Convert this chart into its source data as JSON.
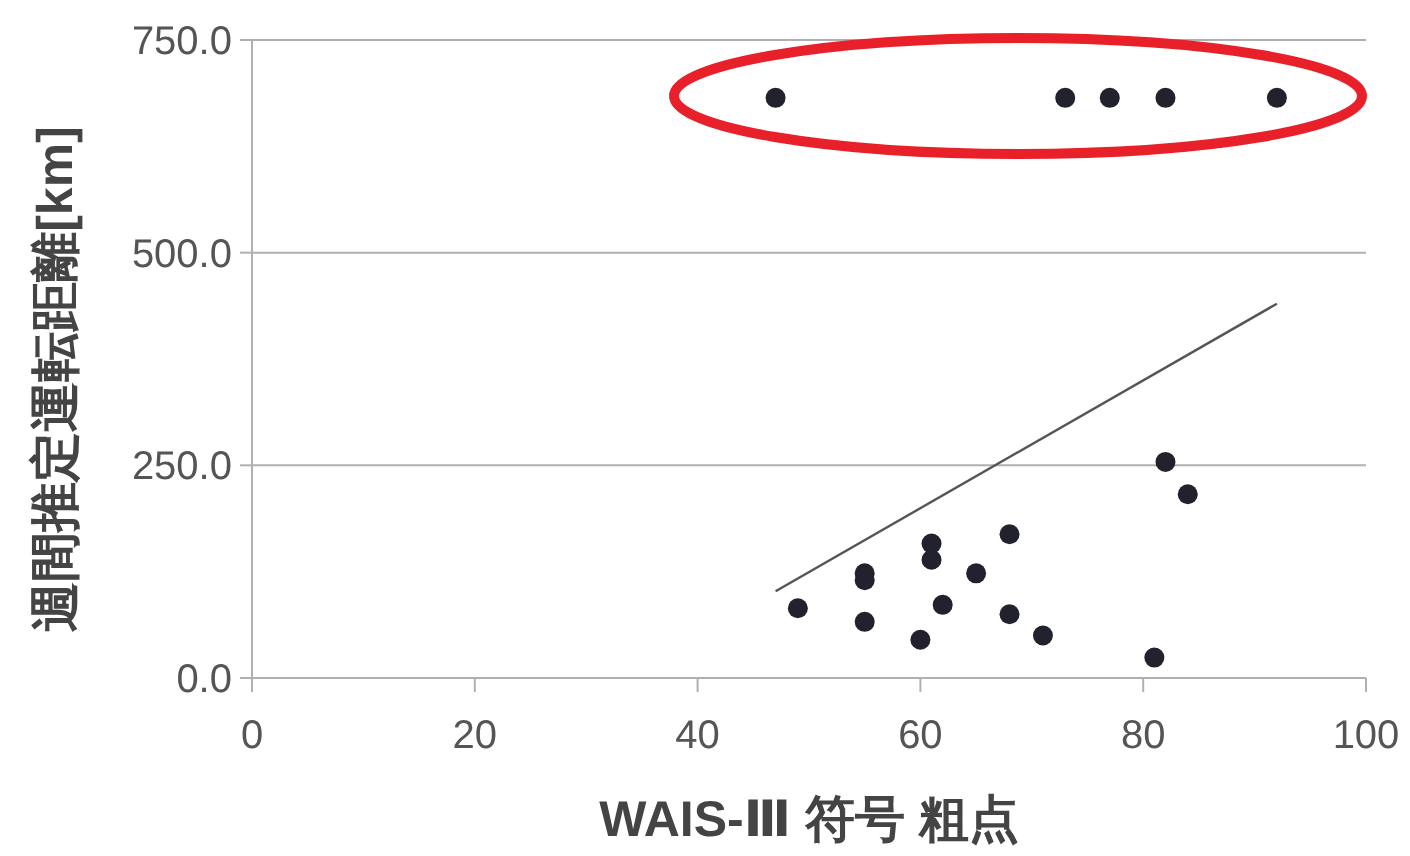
{
  "chart_data": {
    "type": "scatter",
    "xlabel": "WAIS-Ⅲ 符号 粗点",
    "ylabel": "週間推定運転距離[km]",
    "xlim": [
      0,
      100
    ],
    "xticks": [
      0,
      20,
      40,
      60,
      80,
      100
    ],
    "ylim": [
      0,
      750
    ],
    "yticks": [
      {
        "value": 0,
        "label": "0.0"
      },
      {
        "value": 250,
        "label": "250.0"
      },
      {
        "value": 500,
        "label": "500.0"
      },
      {
        "value": 750,
        "label": "750.0"
      }
    ],
    "grid": "y",
    "marker": "circle",
    "series": [
      {
        "color": "#22222e",
        "x": [
          47,
          73,
          77,
          82,
          92,
          49,
          55,
          55,
          55,
          60,
          61,
          61,
          62,
          65,
          68,
          68,
          71,
          81,
          82,
          84
        ],
        "values": [
          682,
          682,
          682,
          682,
          682,
          82,
          123,
          115,
          66,
          45,
          158,
          139,
          86,
          123,
          169,
          75,
          50,
          24,
          254,
          216
        ]
      },
      {
        "type": "line",
        "color": "#555555",
        "marker": "none",
        "x": [
          47,
          92
        ],
        "values": [
          102,
          440
        ]
      }
    ]
  }
}
